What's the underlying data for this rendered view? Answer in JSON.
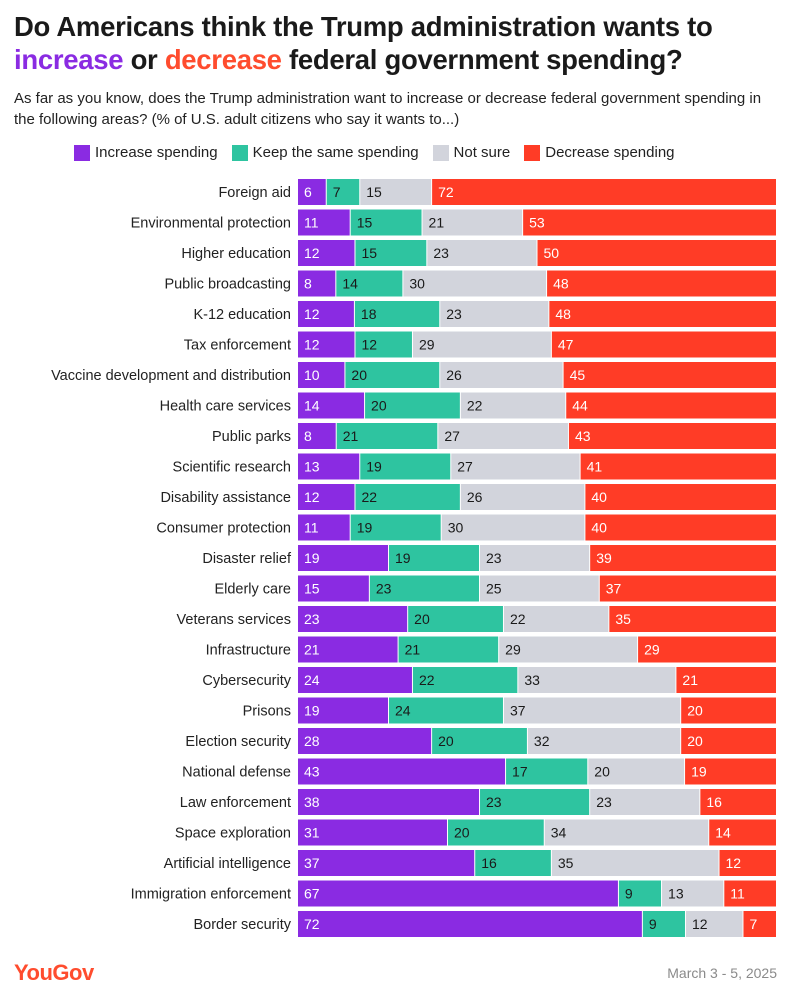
{
  "header": {
    "title_part1": "Do Americans think the Trump administration wants to",
    "title_increase": "increase",
    "title_or": "or",
    "title_decrease": "decrease",
    "title_part2": "federal government spending?",
    "subtitle": "As far as you know, does the Trump administration want to increase or decrease federal government spending in the following areas? (% of U.S. adult citizens who say it wants to...)"
  },
  "colors": {
    "increase": "#8a2be2",
    "same": "#2ec4a0",
    "not_sure": "#d2d4dc",
    "decrease": "#ff3c26"
  },
  "footer": {
    "brand": "YouGov",
    "date": "March 3 - 5, 2025"
  },
  "chart_data": {
    "type": "bar",
    "orientation": "horizontal",
    "stacked": true,
    "title": "Do Americans think the Trump administration wants to increase or decrease federal government spending?",
    "xlabel": "",
    "ylabel": "",
    "xlim": [
      0,
      100
    ],
    "legend_position": "top",
    "categories": [
      "Foreign aid",
      "Environmental protection",
      "Higher education",
      "Public broadcasting",
      "K-12 education",
      "Tax enforcement",
      "Vaccine development and distribution",
      "Health care services",
      "Public parks",
      "Scientific research",
      "Disability assistance",
      "Consumer protection",
      "Disaster relief",
      "Elderly care",
      "Veterans services",
      "Infrastructure",
      "Cybersecurity",
      "Prisons",
      "Election security",
      "National defense",
      "Law enforcement",
      "Space exploration",
      "Artificial intelligence",
      "Immigration enforcement",
      "Border security"
    ],
    "series": [
      {
        "name": "Increase spending",
        "key": "increase",
        "values": [
          6,
          11,
          12,
          8,
          12,
          12,
          10,
          14,
          8,
          13,
          12,
          11,
          19,
          15,
          23,
          21,
          24,
          19,
          28,
          43,
          38,
          31,
          37,
          67,
          72
        ]
      },
      {
        "name": "Keep the same spending",
        "key": "same",
        "values": [
          7,
          15,
          15,
          14,
          18,
          12,
          20,
          20,
          21,
          19,
          22,
          19,
          19,
          23,
          20,
          21,
          22,
          24,
          20,
          17,
          23,
          20,
          16,
          9,
          9
        ]
      },
      {
        "name": "Not sure",
        "key": "not_sure",
        "values": [
          15,
          21,
          23,
          30,
          23,
          29,
          26,
          22,
          27,
          27,
          26,
          30,
          23,
          25,
          22,
          29,
          33,
          37,
          32,
          20,
          23,
          34,
          35,
          13,
          12
        ]
      },
      {
        "name": "Decrease spending",
        "key": "decrease",
        "values": [
          72,
          53,
          50,
          48,
          48,
          47,
          45,
          44,
          43,
          41,
          40,
          40,
          39,
          37,
          35,
          29,
          21,
          20,
          20,
          19,
          16,
          14,
          12,
          11,
          7
        ]
      }
    ]
  }
}
